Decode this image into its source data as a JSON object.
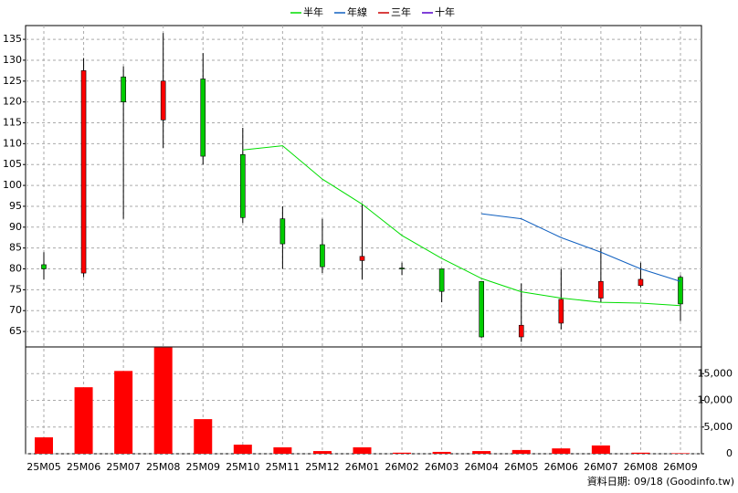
{
  "chart_data": [
    {
      "type": "candlestick",
      "categories": [
        "25M05",
        "25M06",
        "25M07",
        "25M08",
        "25M09",
        "25M10",
        "25M11",
        "25M12",
        "26M01",
        "26M02",
        "26M03",
        "26M04",
        "26M05",
        "26M06",
        "26M07",
        "26M08",
        "26M09"
      ],
      "open": [
        81,
        79,
        126,
        115.7,
        125.5,
        107.4,
        92,
        85.8,
        82,
        80.2,
        80,
        77,
        63.7,
        67,
        73,
        76,
        78
      ],
      "high": [
        84,
        130.5,
        128.5,
        136.5,
        131.7,
        113.8,
        95,
        92,
        95.5,
        81.5,
        80,
        77,
        76.5,
        80,
        85,
        81.5,
        78.5
      ],
      "low": [
        77.5,
        78,
        92,
        109,
        105,
        91,
        80,
        79,
        77.5,
        78.5,
        72,
        63.5,
        62.5,
        65.5,
        72,
        75.5,
        67.5
      ],
      "close": [
        80,
        127.5,
        120,
        125,
        107,
        92.3,
        86,
        80.5,
        83,
        80,
        74.6,
        63.7,
        66.5,
        72.7,
        77,
        77.5,
        71.6
      ],
      "up_color": "#ff0000",
      "down_color": "#00cc00",
      "series": [
        {
          "name": "半年",
          "color": "#00dd00",
          "values": [
            null,
            null,
            null,
            null,
            null,
            108.5,
            109.5,
            101.5,
            95.5,
            88,
            82.5,
            77.7,
            74.5,
            73,
            72,
            71.8,
            71.2
          ]
        },
        {
          "name": "年線",
          "color": "#1060c0",
          "values": [
            null,
            null,
            null,
            null,
            null,
            null,
            null,
            null,
            null,
            null,
            null,
            93.2,
            92,
            87.5,
            84,
            80,
            77
          ]
        },
        {
          "name": "三年",
          "color": "#cc0000",
          "values": [
            null,
            null,
            null,
            null,
            null,
            null,
            null,
            null,
            null,
            null,
            null,
            null,
            null,
            null,
            null,
            null,
            null
          ]
        },
        {
          "name": "十年",
          "color": "#5500cc",
          "values": [
            null,
            null,
            null,
            null,
            null,
            null,
            null,
            null,
            null,
            null,
            null,
            null,
            null,
            null,
            null,
            null,
            null
          ]
        }
      ],
      "ylim": [
        61.3,
        138.3
      ],
      "yticks": [
        65,
        70,
        75,
        80,
        85,
        90,
        95,
        100,
        105,
        110,
        115,
        120,
        125,
        130,
        135
      ],
      "grid": true,
      "legend": "top",
      "source": "資料日期: 09/18 (Goodinfo.tw)"
    },
    {
      "type": "bar",
      "values": [
        3070,
        12450,
        15500,
        19900,
        6480,
        1700,
        1200,
        500,
        1200,
        200,
        350,
        500,
        700,
        1000,
        1550,
        200,
        100
      ],
      "color": "#ff0000",
      "ylim": [
        0,
        20000
      ],
      "yticks": [
        0,
        {
          "value": 5000,
          "label": "5,000"
        },
        {
          "value": 10000,
          "label": "10,000"
        },
        {
          "value": 15000,
          "label": "15,000"
        }
      ],
      "grid": true
    }
  ]
}
